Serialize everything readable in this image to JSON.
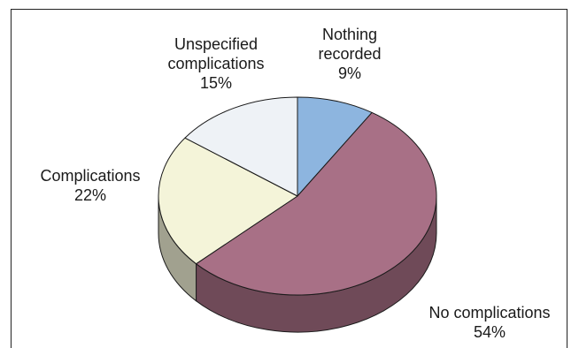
{
  "chart_data": {
    "type": "pie",
    "title": "",
    "style": "3d",
    "slices": [
      {
        "label_lines": [
          "Nothing",
          "recorded"
        ],
        "label": "Nothing recorded",
        "value": 9,
        "value_label": "9%",
        "color": "#8db5df"
      },
      {
        "label_lines": [
          "No complications"
        ],
        "label": "No complications",
        "value": 54,
        "value_label": "54%",
        "color": "#a87086"
      },
      {
        "label_lines": [
          "Complications"
        ],
        "label": "Complications",
        "value": 22,
        "value_label": "22%",
        "color": "#f4f4d9"
      },
      {
        "label_lines": [
          "Unspecified",
          "complications"
        ],
        "label": "Unspecified complications",
        "value": 15,
        "value_label": "15%",
        "color": "#eef2f6"
      }
    ]
  }
}
